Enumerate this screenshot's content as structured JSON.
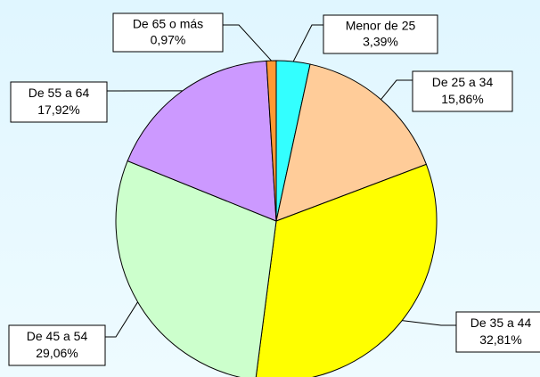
{
  "chart_data": {
    "type": "pie",
    "categories": [
      "Menor de 25",
      "De 25 a 34",
      "De 35 a 44",
      "De 45 a 54",
      "De 55 a 64",
      "De 65 o más"
    ],
    "values": [
      3.39,
      15.86,
      32.81,
      29.06,
      17.92,
      0.97
    ],
    "value_labels": [
      "3,39%",
      "15,86%",
      "32,81%",
      "29,06%",
      "17,92%",
      "0,97%"
    ],
    "colors": [
      "#33ffff",
      "#ffcc99",
      "#ffff00",
      "#ccffcc",
      "#cc99ff",
      "#ff9933"
    ]
  }
}
